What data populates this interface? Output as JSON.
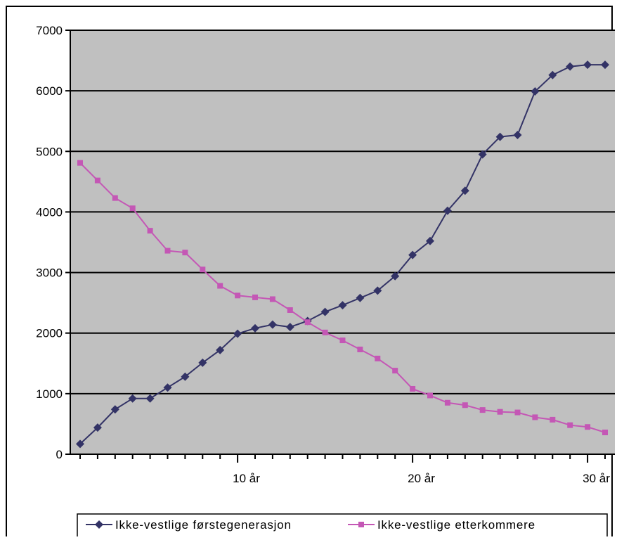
{
  "chart_data": {
    "type": "line",
    "x": [
      1,
      2,
      3,
      4,
      5,
      6,
      7,
      8,
      9,
      10,
      11,
      12,
      13,
      14,
      15,
      16,
      17,
      18,
      19,
      20,
      21,
      22,
      23,
      24,
      25,
      26,
      27,
      28,
      29,
      30,
      31
    ],
    "series": [
      {
        "name": "Ikke-vestlige førstegenerasjon",
        "color": "#333366",
        "marker": "diamond",
        "values": [
          170,
          440,
          740,
          920,
          920,
          1100,
          1280,
          1510,
          1720,
          1990,
          2080,
          2140,
          2100,
          2200,
          2350,
          2460,
          2580,
          2700,
          2940,
          3290,
          3520,
          4020,
          4350,
          4950,
          5240,
          5270,
          5990,
          6260,
          6400,
          6430,
          6430
        ]
      },
      {
        "name": "Ikke-vestlige etterkommere",
        "color": "#c457b5",
        "marker": "square",
        "values": [
          4810,
          4520,
          4230,
          4060,
          3690,
          3360,
          3330,
          3050,
          2780,
          2620,
          2590,
          2560,
          2380,
          2180,
          2010,
          1880,
          1730,
          1580,
          1380,
          1080,
          970,
          850,
          810,
          730,
          700,
          690,
          610,
          570,
          480,
          450,
          360
        ]
      }
    ],
    "xtick_labels": [
      {
        "x": 10,
        "label": "10 år"
      },
      {
        "x": 20,
        "label": "20 år"
      },
      {
        "x": 30,
        "label": "30 år"
      }
    ],
    "yticks": [
      0,
      1000,
      2000,
      3000,
      4000,
      5000,
      6000,
      7000
    ],
    "ylim": [
      0,
      7000
    ],
    "title": "",
    "xlabel": "",
    "ylabel": "",
    "grid": "horizontal",
    "plot_background": "#c0c0c0",
    "legend_position": "bottom"
  }
}
